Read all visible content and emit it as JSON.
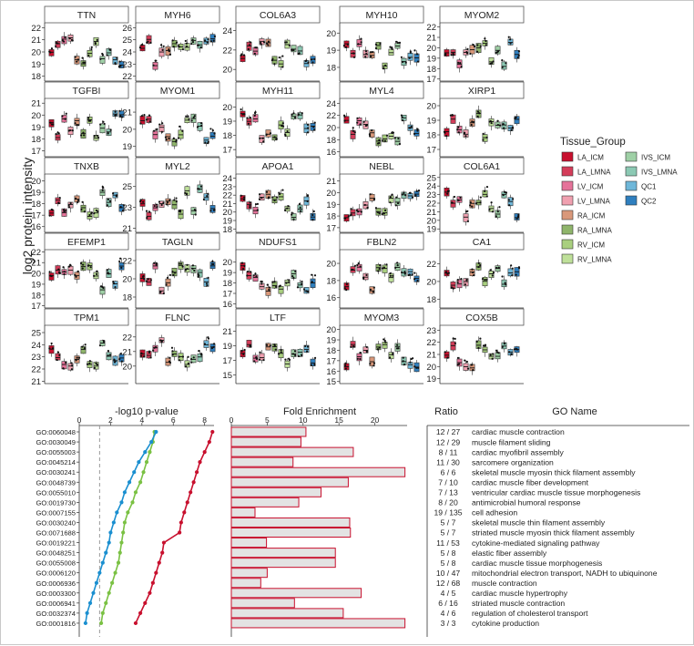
{
  "chart_data": [
    {
      "type": "boxplot",
      "ylabel": "log2 protein intensity",
      "legend": {
        "title": "Tissue_Group",
        "placement": "right",
        "items": [
          {
            "label": "LA_ICM",
            "color": "#c8102e"
          },
          {
            "label": "LA_LMNA",
            "color": "#d43d5a"
          },
          {
            "label": "LV_ICM",
            "color": "#e5739a"
          },
          {
            "label": "LV_LMNA",
            "color": "#f0a0b0"
          },
          {
            "label": "RA_ICM",
            "color": "#d9987a"
          },
          {
            "label": "RA_LMNA",
            "color": "#8fb56b"
          },
          {
            "label": "RV_ICM",
            "color": "#a9cf7f"
          },
          {
            "label": "RV_LMNA",
            "color": "#bfe09a"
          },
          {
            "label": "IVS_ICM",
            "color": "#9fd0a6"
          },
          {
            "label": "IVS_LMNA",
            "color": "#8cc9b4"
          },
          {
            "label": "QC1",
            "color": "#6fb7d9"
          },
          {
            "label": "QC2",
            "color": "#2f7fbf"
          }
        ]
      },
      "panels": [
        {
          "title": "TTN",
          "ticks": [
            18,
            19,
            20,
            21,
            22
          ],
          "ylim": [
            17.6,
            22.4
          ]
        },
        {
          "title": "MYH6",
          "ticks": [
            22,
            23,
            24,
            25,
            26
          ],
          "ylim": [
            21.6,
            26.4
          ]
        },
        {
          "title": "COL6A3",
          "ticks": [
            20,
            22,
            24
          ],
          "ylim": [
            18.8,
            24.8
          ]
        },
        {
          "title": "MYH10",
          "ticks": [
            18,
            19,
            20
          ],
          "ylim": [
            17.2,
            20.6
          ]
        },
        {
          "title": "MYOM2",
          "ticks": [
            17,
            18,
            19,
            20,
            21,
            22
          ],
          "ylim": [
            16.8,
            22.4
          ]
        },
        {
          "title": "TGFBI",
          "ticks": [
            17,
            18,
            19,
            20,
            21
          ],
          "ylim": [
            16.5,
            21.4
          ]
        },
        {
          "title": "MYOM1",
          "ticks": [
            19,
            20,
            21
          ],
          "ylim": [
            18.4,
            21.8
          ]
        },
        {
          "title": "MYH11",
          "ticks": [
            17,
            18,
            19,
            20
          ],
          "ylim": [
            16.5,
            20.6
          ]
        },
        {
          "title": "MYL4",
          "ticks": [
            16,
            18,
            20,
            22,
            24
          ],
          "ylim": [
            15.2,
            24.8
          ]
        },
        {
          "title": "XIRP1",
          "ticks": [
            17,
            18,
            19,
            20
          ],
          "ylim": [
            16.5,
            20.5
          ]
        },
        {
          "title": "TNXB",
          "ticks": [
            16,
            17,
            18,
            19,
            20
          ],
          "ylim": [
            15.5,
            20.6
          ]
        },
        {
          "title": "MYL2",
          "ticks": [
            21,
            23,
            25
          ],
          "ylim": [
            20.6,
            26.2
          ]
        },
        {
          "title": "APOA1",
          "ticks": [
            18,
            19,
            20,
            21,
            22,
            23,
            24
          ],
          "ylim": [
            17.6,
            24.5
          ]
        },
        {
          "title": "NEBL",
          "ticks": [
            17,
            18,
            19,
            20,
            21
          ],
          "ylim": [
            16.6,
            21.6
          ]
        },
        {
          "title": "COL6A1",
          "ticks": [
            19,
            20,
            21,
            22,
            23,
            24,
            25
          ],
          "ylim": [
            18.6,
            25.4
          ]
        },
        {
          "title": "EFEMP1",
          "ticks": [
            17,
            18,
            19,
            20,
            21,
            22
          ],
          "ylim": [
            16.8,
            22.2
          ]
        },
        {
          "title": "TAGLN",
          "ticks": [
            18,
            20,
            22
          ],
          "ylim": [
            16.8,
            23.2
          ]
        },
        {
          "title": "NDUFS1",
          "ticks": [
            16,
            17,
            18,
            19,
            20
          ],
          "ylim": [
            15.6,
            21.2
          ]
        },
        {
          "title": "FBLN2",
          "ticks": [
            16,
            18,
            20
          ],
          "ylim": [
            14.8,
            21.6
          ]
        },
        {
          "title": "CA1",
          "ticks": [
            18,
            20,
            22
          ],
          "ylim": [
            17,
            23.6
          ]
        },
        {
          "title": "TPM1",
          "ticks": [
            21,
            22,
            23,
            24,
            25
          ],
          "ylim": [
            20.8,
            25.6
          ]
        },
        {
          "title": "FLNC",
          "ticks": [
            20,
            21,
            22
          ],
          "ylim": [
            18.8,
            22.8
          ]
        },
        {
          "title": "LTF",
          "ticks": [
            15,
            17,
            19,
            21
          ],
          "ylim": [
            13.8,
            21.8
          ]
        },
        {
          "title": "MYOM3",
          "ticks": [
            15,
            16,
            17,
            18,
            19,
            20
          ],
          "ylim": [
            14.8,
            20.4
          ]
        },
        {
          "title": "COX5B",
          "ticks": [
            19,
            20,
            21,
            22,
            23
          ],
          "ylim": [
            18.6,
            23.4
          ]
        }
      ]
    },
    {
      "type": "line",
      "title": "-log10 p-value",
      "xlim": [
        0,
        8.6
      ],
      "xticks": [
        0,
        2,
        4,
        6,
        8
      ],
      "threshold": 1.3,
      "categories": [
        "GO:0060048",
        "GO:0030049",
        "GO:0055003",
        "GO:0045214",
        "GO:0030241",
        "GO:0048739",
        "GO:0055010",
        "GO:0019730",
        "GO:0007155",
        "GO:0030240",
        "GO:0071688",
        "GO:0019221",
        "GO:0048251",
        "GO:0055008",
        "GO:0006120",
        "GO:0006936",
        "GO:0003300",
        "GO:0006941",
        "GO:0032374",
        "GO:0001816"
      ],
      "series": [
        {
          "color": "#c8102e",
          "values": [
            8.5,
            8.3,
            8.0,
            7.7,
            7.5,
            7.3,
            7.1,
            6.9,
            6.7,
            6.5,
            6.4,
            5.4,
            5.3,
            5.1,
            4.9,
            4.7,
            4.5,
            4.2,
            3.9,
            3.6
          ]
        },
        {
          "color": "#7ac143",
          "values": [
            4.8,
            4.7,
            4.5,
            4.3,
            4.1,
            3.9,
            3.6,
            3.4,
            3.1,
            2.9,
            2.8,
            2.7,
            2.6,
            2.5,
            2.3,
            2.1,
            1.9,
            1.7,
            1.5,
            1.4
          ]
        },
        {
          "color": "#1a8fd0",
          "values": [
            4.9,
            4.6,
            4.2,
            3.8,
            3.5,
            3.2,
            2.9,
            2.7,
            2.4,
            2.2,
            2.0,
            1.9,
            1.7,
            1.5,
            1.3,
            1.1,
            0.9,
            0.7,
            0.5,
            0.4
          ]
        }
      ]
    },
    {
      "type": "bar",
      "title": "Fold Enrichment",
      "xlim": [
        0,
        24.5
      ],
      "xticks": [
        0,
        5,
        10,
        15,
        20
      ],
      "values": [
        10.4,
        9.7,
        17.0,
        8.6,
        24.2,
        16.3,
        12.5,
        9.4,
        3.3,
        16.5,
        16.6,
        4.9,
        14.5,
        14.5,
        5.0,
        4.1,
        18.1,
        8.8,
        15.6,
        24.2
      ]
    },
    {
      "type": "table",
      "columns": [
        "Ratio",
        "GO Name"
      ],
      "rows": [
        [
          "12 / 27",
          "cardiac muscle contraction"
        ],
        [
          "12 / 29",
          "muscle filament sliding"
        ],
        [
          "8 / 11",
          "cardiac myofibril assembly"
        ],
        [
          "11 / 30",
          "sarcomere organization"
        ],
        [
          "6 / 6",
          "skeletal muscle myosin thick filament assembly"
        ],
        [
          "7 / 10",
          "cardiac muscle fiber development"
        ],
        [
          "7 / 13",
          "ventricular cardiac muscle tissue morphogenesis"
        ],
        [
          "8 / 20",
          "antimicrobial humoral response"
        ],
        [
          "19 / 135",
          "cell adhesion"
        ],
        [
          "5 / 7",
          "skeletal muscle thin filament assembly"
        ],
        [
          "5 / 7",
          "striated muscle myosin thick filament assembly"
        ],
        [
          "11 / 53",
          "cytokine-mediated signaling pathway"
        ],
        [
          "5 / 8",
          "elastic fiber assembly"
        ],
        [
          "5 / 8",
          "cardiac muscle tissue morphogenesis"
        ],
        [
          "10 / 47",
          "mitochondrial electron transport, NADH to ubiquinone"
        ],
        [
          "12 / 68",
          "muscle contraction"
        ],
        [
          "4 / 5",
          "cardiac muscle hypertrophy"
        ],
        [
          "6 / 16",
          "striated muscle contraction"
        ],
        [
          "4 / 6",
          "regulation of cholesterol transport"
        ],
        [
          "3 / 3",
          "cytokine production"
        ]
      ]
    }
  ]
}
